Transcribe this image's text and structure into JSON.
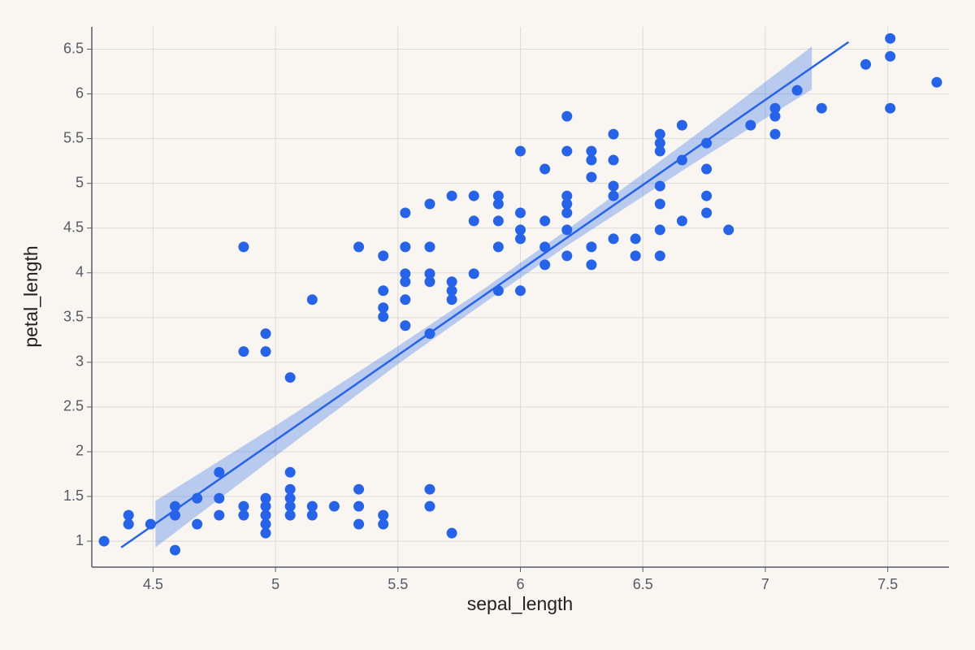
{
  "chart_data": {
    "type": "scatter",
    "x_label": "sepal_length",
    "y_label": "petal_length",
    "color": "#2563eb",
    "grid": true,
    "xlim": [
      4.25,
      7.75
    ],
    "ylim": [
      0.71,
      6.75
    ],
    "xticks": [
      4.5,
      5,
      5.5,
      6,
      6.5,
      7,
      7.5
    ],
    "yticks": [
      1,
      1.5,
      2,
      2.5,
      3,
      3.5,
      4,
      4.5,
      5,
      5.5,
      6,
      6.5
    ],
    "x": [
      4.3,
      4.4,
      4.4,
      4.49,
      4.59,
      4.59,
      4.59,
      4.68,
      4.68,
      4.77,
      4.77,
      4.77,
      4.87,
      4.87,
      4.87,
      4.87,
      4.96,
      4.96,
      4.96,
      4.96,
      4.96,
      4.96,
      4.96,
      5.06,
      5.06,
      5.06,
      5.06,
      5.06,
      5.06,
      5.15,
      5.15,
      5.15,
      5.24,
      5.34,
      5.34,
      5.34,
      5.34,
      5.44,
      5.44,
      5.44,
      5.44,
      5.44,
      5.44,
      5.53,
      5.53,
      5.53,
      5.53,
      5.53,
      5.53,
      5.63,
      5.63,
      5.63,
      5.63,
      5.63,
      5.63,
      5.63,
      5.72,
      5.72,
      5.72,
      5.72,
      5.72,
      5.81,
      5.81,
      5.81,
      5.91,
      5.91,
      5.91,
      5.91,
      5.91,
      6.0,
      6.0,
      6.0,
      6.0,
      6.0,
      6.1,
      6.1,
      6.1,
      6.1,
      6.19,
      6.19,
      6.19,
      6.19,
      6.19,
      6.19,
      6.19,
      6.29,
      6.29,
      6.29,
      6.29,
      6.29,
      6.38,
      6.38,
      6.38,
      6.38,
      6.38,
      6.47,
      6.47,
      6.57,
      6.57,
      6.57,
      6.57,
      6.57,
      6.57,
      6.57,
      6.66,
      6.66,
      6.66,
      6.76,
      6.76,
      6.76,
      6.76,
      6.85,
      6.94,
      7.04,
      7.04,
      7.04,
      7.13,
      7.23,
      7.41,
      7.51,
      7.51,
      7.51,
      7.7
    ],
    "values": [
      1.0,
      1.29,
      1.19,
      1.19,
      1.39,
      1.29,
      0.9,
      1.48,
      1.19,
      1.77,
      1.48,
      1.29,
      4.29,
      3.12,
      1.39,
      1.29,
      3.32,
      3.12,
      1.48,
      1.39,
      1.29,
      1.19,
      1.09,
      2.83,
      1.77,
      1.58,
      1.48,
      1.39,
      1.29,
      3.7,
      1.39,
      1.29,
      1.39,
      4.29,
      1.58,
      1.39,
      1.19,
      4.19,
      3.8,
      3.61,
      3.51,
      1.29,
      1.19,
      4.67,
      4.29,
      3.99,
      3.9,
      3.7,
      3.41,
      4.77,
      4.29,
      3.99,
      3.9,
      3.32,
      1.58,
      1.39,
      4.86,
      3.9,
      3.8,
      3.7,
      1.09,
      4.86,
      4.58,
      3.99,
      4.86,
      4.77,
      4.58,
      4.29,
      3.8,
      5.36,
      4.67,
      4.48,
      4.38,
      3.8,
      5.16,
      4.58,
      4.29,
      4.09,
      5.75,
      5.36,
      4.86,
      4.77,
      4.67,
      4.48,
      4.19,
      5.36,
      5.26,
      5.07,
      4.29,
      4.09,
      5.55,
      5.26,
      4.97,
      4.86,
      4.38,
      4.38,
      4.19,
      5.55,
      5.45,
      5.36,
      4.97,
      4.77,
      4.48,
      4.19,
      5.65,
      5.26,
      4.58,
      5.45,
      5.16,
      4.86,
      4.67,
      4.48,
      5.65,
      5.84,
      5.75,
      5.55,
      6.04,
      5.84,
      6.33,
      6.62,
      6.42,
      5.84,
      6.13
    ],
    "fit": {
      "x": [
        4.37,
        7.34
      ],
      "values": [
        0.93,
        6.58
      ]
    },
    "band": {
      "x": [
        4.51,
        5.0,
        5.5,
        5.85,
        6.2,
        6.7,
        7.19
      ],
      "lower": [
        0.93,
        1.95,
        2.98,
        3.66,
        4.32,
        5.21,
        6.05
      ],
      "upper": [
        1.45,
        2.29,
        3.18,
        3.82,
        4.5,
        5.51,
        6.53
      ]
    }
  }
}
